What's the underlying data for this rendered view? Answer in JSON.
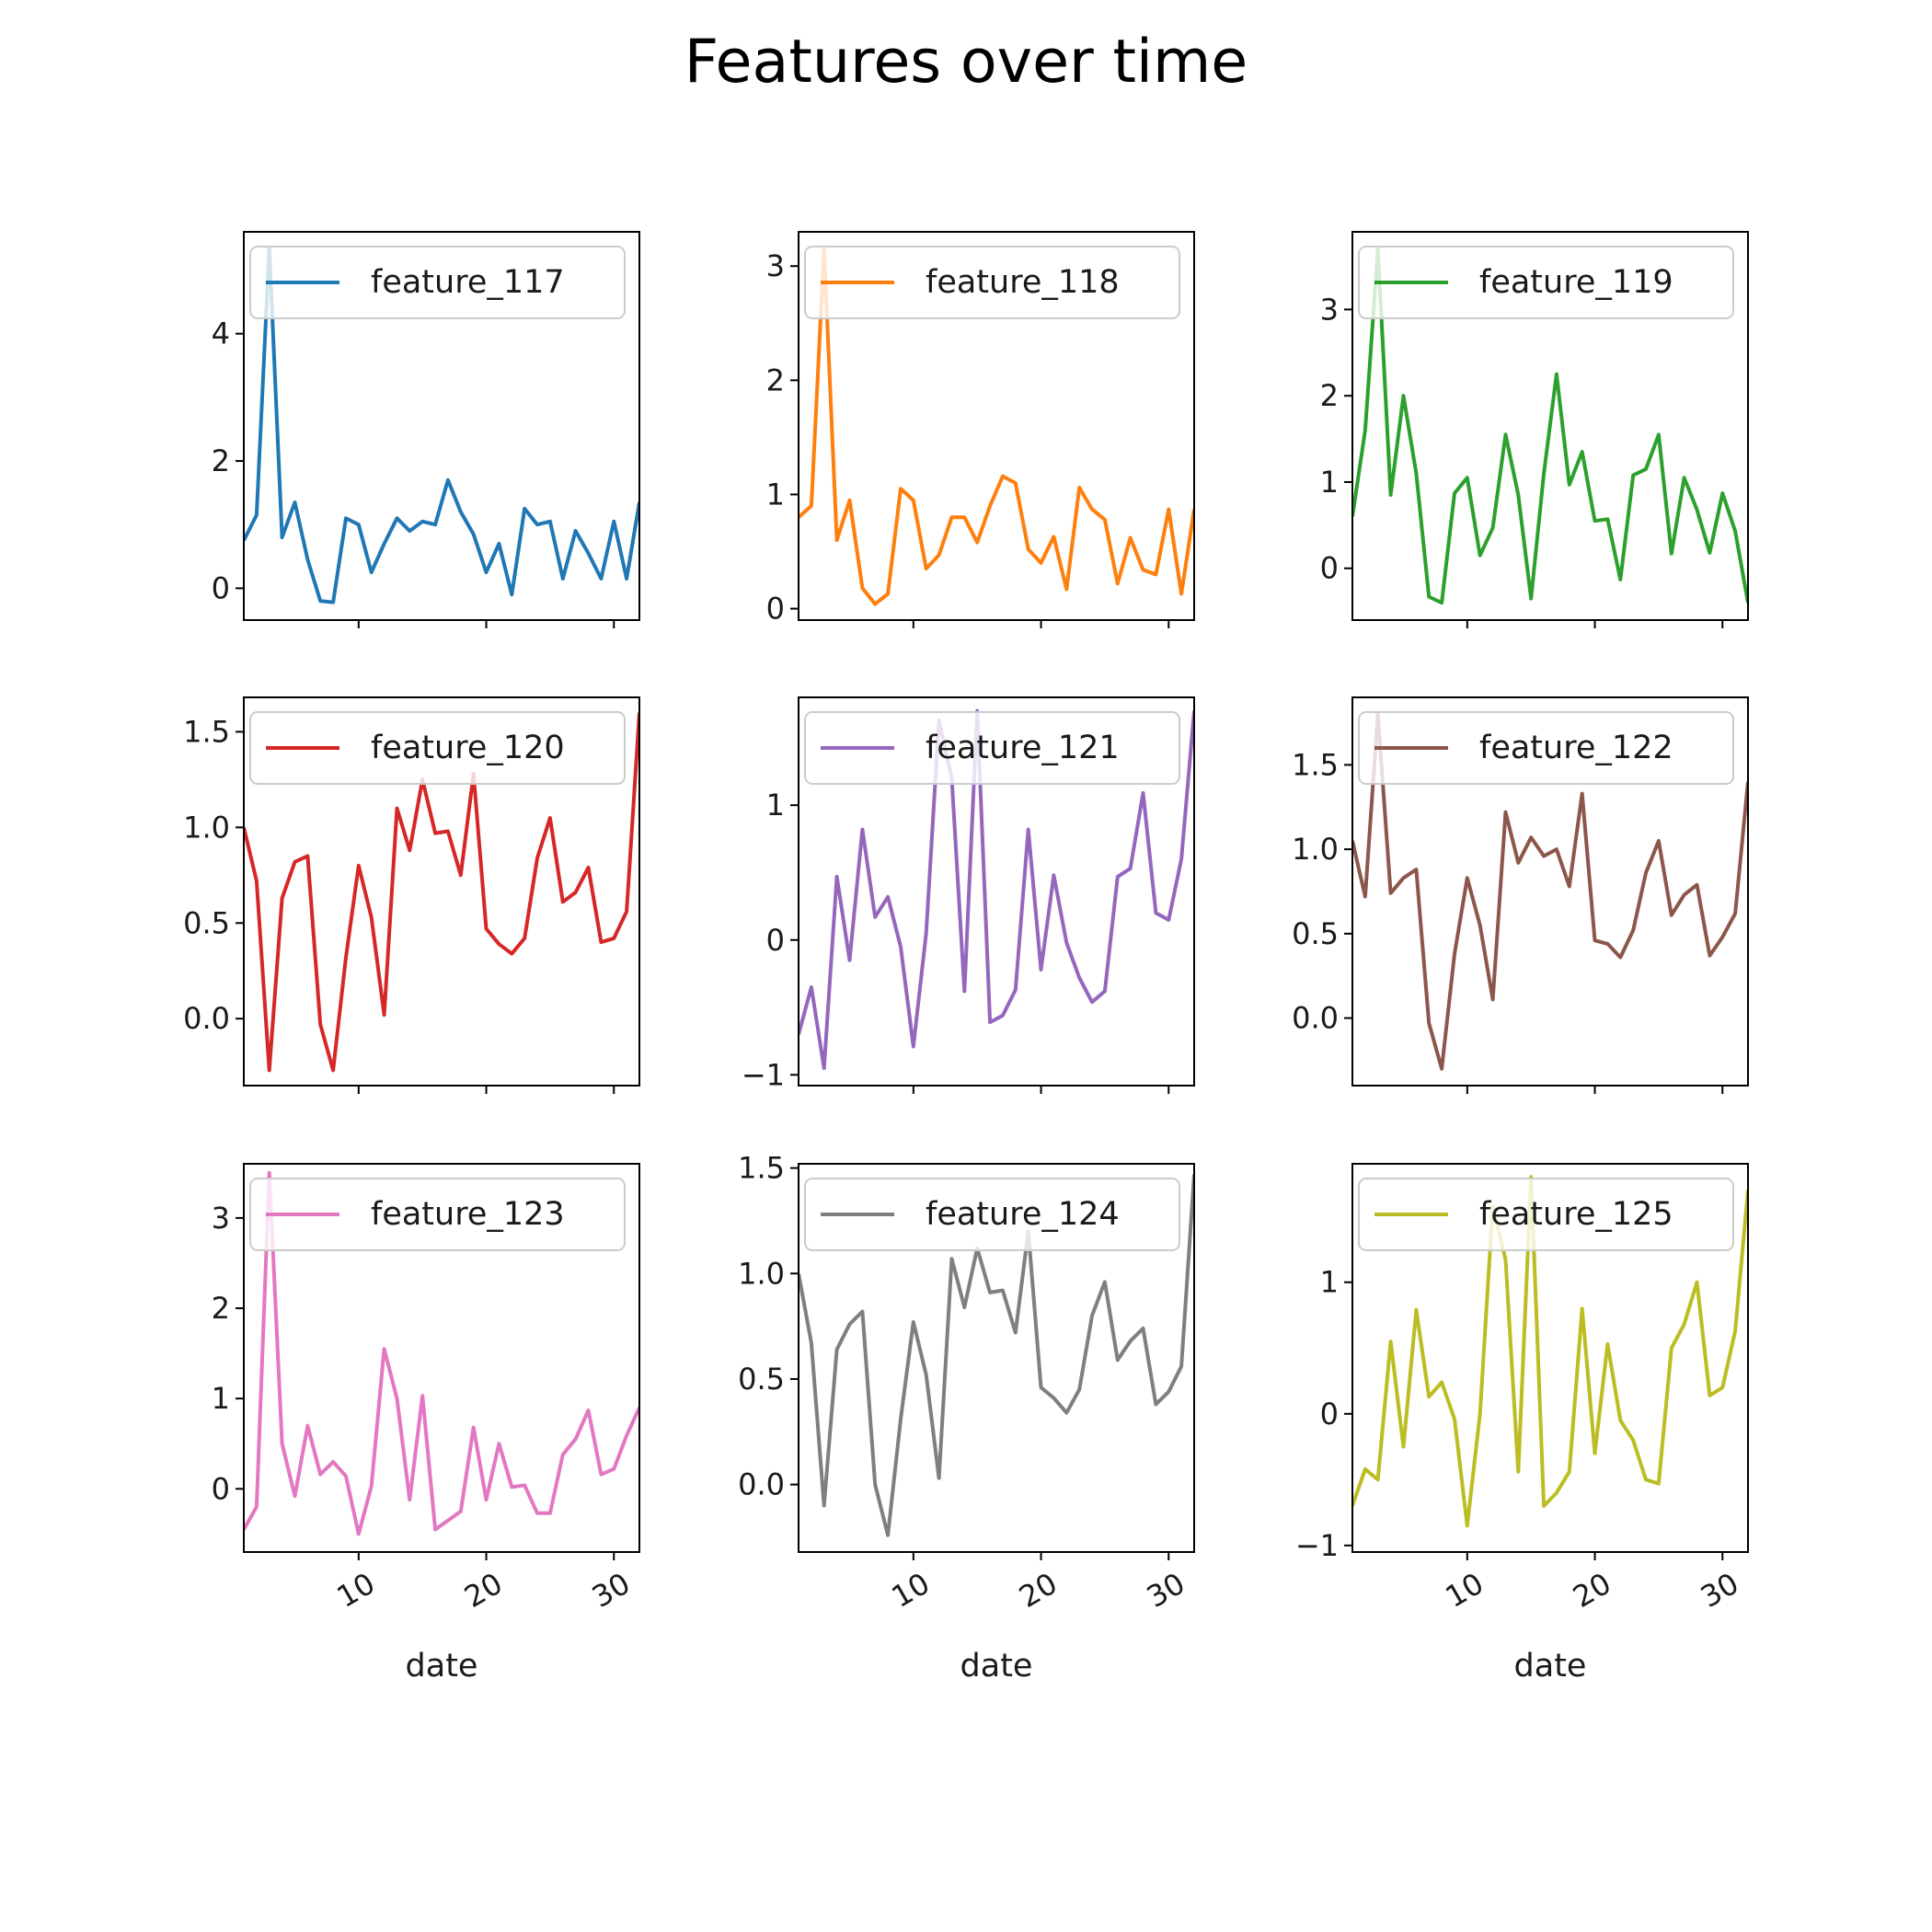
{
  "title": "Features over time",
  "chart_data": [
    {
      "type": "line",
      "series": [
        {
          "name": "feature_117",
          "color": "#1f77b4",
          "values": [
            0.75,
            1.15,
            5.35,
            0.8,
            1.35,
            0.45,
            -0.2,
            -0.22,
            1.1,
            1.0,
            0.25,
            0.7,
            1.1,
            0.9,
            1.05,
            1.0,
            1.7,
            1.2,
            0.85,
            0.25,
            0.7,
            -0.1,
            1.25,
            1.0,
            1.05,
            0.15,
            0.9,
            0.55,
            0.15,
            1.05,
            0.15,
            1.35
          ]
        }
      ],
      "xlabel": "date",
      "xticks": [
        10,
        20,
        30
      ],
      "xlim": [
        1,
        32
      ],
      "yticks": [
        "0",
        "2",
        "4"
      ],
      "ytick_values": [
        0,
        2,
        4
      ],
      "ylim": [
        -0.5,
        5.6
      ]
    },
    {
      "type": "line",
      "series": [
        {
          "name": "feature_118",
          "color": "#ff7f0e",
          "values": [
            0.8,
            0.9,
            3.15,
            0.6,
            0.95,
            0.18,
            0.04,
            0.13,
            1.05,
            0.95,
            0.35,
            0.47,
            0.8,
            0.8,
            0.58,
            0.9,
            1.16,
            1.1,
            0.52,
            0.4,
            0.63,
            0.17,
            1.06,
            0.87,
            0.78,
            0.22,
            0.62,
            0.34,
            0.3,
            0.87,
            0.13,
            0.87
          ]
        }
      ],
      "xlabel": "date",
      "xticks": [
        10,
        20,
        30
      ],
      "xlim": [
        1,
        32
      ],
      "yticks": [
        "0",
        "1",
        "2",
        "3"
      ],
      "ytick_values": [
        0,
        1,
        2,
        3
      ],
      "ylim": [
        -0.1,
        3.3
      ]
    },
    {
      "type": "line",
      "series": [
        {
          "name": "feature_119",
          "color": "#2ca02c",
          "values": [
            0.6,
            1.6,
            3.7,
            0.85,
            2.0,
            1.1,
            -0.33,
            -0.4,
            0.87,
            1.05,
            0.15,
            0.47,
            1.55,
            0.85,
            -0.35,
            1.1,
            2.25,
            0.97,
            1.35,
            0.55,
            0.57,
            -0.13,
            1.08,
            1.15,
            1.55,
            0.17,
            1.05,
            0.68,
            0.18,
            0.87,
            0.43,
            -0.4
          ]
        }
      ],
      "xlabel": "date",
      "xticks": [
        10,
        20,
        30
      ],
      "xlim": [
        1,
        32
      ],
      "yticks": [
        "0",
        "1",
        "2",
        "3"
      ],
      "ytick_values": [
        0,
        1,
        2,
        3
      ],
      "ylim": [
        -0.6,
        3.9
      ]
    },
    {
      "type": "line",
      "series": [
        {
          "name": "feature_120",
          "color": "#d62728",
          "values": [
            1.0,
            0.72,
            -0.27,
            0.63,
            0.82,
            0.85,
            -0.03,
            -0.27,
            0.32,
            0.8,
            0.53,
            0.02,
            1.1,
            0.88,
            1.25,
            0.97,
            0.98,
            0.75,
            1.28,
            0.47,
            0.39,
            0.34,
            0.42,
            0.84,
            1.05,
            0.61,
            0.66,
            0.79,
            0.4,
            0.42,
            0.56,
            1.6
          ]
        }
      ],
      "xlabel": "date",
      "xticks": [
        10,
        20,
        30
      ],
      "xlim": [
        1,
        32
      ],
      "yticks": [
        "0.0",
        "0.5",
        "1.0",
        "1.5"
      ],
      "ytick_values": [
        0,
        0.5,
        1,
        1.5
      ],
      "ylim": [
        -0.35,
        1.68
      ]
    },
    {
      "type": "line",
      "series": [
        {
          "name": "feature_121",
          "color": "#9467bd",
          "values": [
            -0.7,
            -0.35,
            -0.95,
            0.47,
            -0.15,
            0.82,
            0.17,
            0.32,
            -0.05,
            -0.79,
            0.05,
            1.63,
            1.2,
            -0.38,
            1.7,
            -0.61,
            -0.56,
            -0.37,
            0.82,
            -0.22,
            0.48,
            -0.02,
            -0.28,
            -0.46,
            -0.38,
            0.47,
            0.53,
            1.09,
            0.2,
            0.15,
            0.6,
            1.7
          ]
        }
      ],
      "xlabel": "date",
      "xticks": [
        10,
        20,
        30
      ],
      "xlim": [
        1,
        32
      ],
      "yticks": [
        "−1",
        "0",
        "1"
      ],
      "ytick_values": [
        -1,
        0,
        1
      ],
      "ylim": [
        -1.08,
        1.8
      ]
    },
    {
      "type": "line",
      "series": [
        {
          "name": "feature_122",
          "color": "#8c564b",
          "values": [
            1.05,
            0.72,
            1.8,
            0.74,
            0.83,
            0.88,
            -0.03,
            -0.3,
            0.38,
            0.83,
            0.55,
            0.11,
            1.22,
            0.92,
            1.07,
            0.96,
            1.0,
            0.78,
            1.33,
            0.46,
            0.44,
            0.36,
            0.52,
            0.86,
            1.05,
            0.61,
            0.73,
            0.79,
            0.37,
            0.48,
            0.62,
            1.4
          ]
        }
      ],
      "xlabel": "date",
      "xticks": [
        10,
        20,
        30
      ],
      "xlim": [
        1,
        32
      ],
      "yticks": [
        "0.0",
        "0.5",
        "1.0",
        "1.5"
      ],
      "ytick_values": [
        0,
        0.5,
        1,
        1.5
      ],
      "ylim": [
        -0.4,
        1.9
      ]
    },
    {
      "type": "line",
      "series": [
        {
          "name": "feature_123",
          "color": "#e377c2",
          "values": [
            -0.45,
            -0.2,
            3.5,
            0.5,
            -0.08,
            0.7,
            0.16,
            0.3,
            0.14,
            -0.5,
            0.03,
            1.55,
            1.0,
            -0.12,
            1.03,
            -0.45,
            -0.35,
            -0.25,
            0.68,
            -0.12,
            0.5,
            0.02,
            0.04,
            -0.27,
            -0.27,
            0.38,
            0.55,
            0.87,
            0.16,
            0.22,
            0.59,
            0.9
          ]
        }
      ],
      "xlabel": "date",
      "xticks": [
        10,
        20,
        30
      ],
      "xlim": [
        1,
        32
      ],
      "yticks": [
        "0",
        "1",
        "2",
        "3"
      ],
      "ytick_values": [
        0,
        1,
        2,
        3
      ],
      "ylim": [
        -0.7,
        3.6
      ]
    },
    {
      "type": "line",
      "series": [
        {
          "name": "feature_124",
          "color": "#7f7f7f",
          "values": [
            1.0,
            0.67,
            -0.1,
            0.64,
            0.76,
            0.82,
            0.0,
            -0.24,
            0.31,
            0.77,
            0.52,
            0.03,
            1.07,
            0.84,
            1.12,
            0.91,
            0.92,
            0.72,
            1.2,
            0.46,
            0.41,
            0.34,
            0.45,
            0.8,
            0.96,
            0.59,
            0.68,
            0.74,
            0.38,
            0.44,
            0.56,
            1.47
          ]
        }
      ],
      "xlabel": "date",
      "xticks": [
        10,
        20,
        30
      ],
      "xlim": [
        1,
        32
      ],
      "yticks": [
        "0.0",
        "0.5",
        "1.0",
        "1.5"
      ],
      "ytick_values": [
        0,
        0.5,
        1,
        1.5
      ],
      "ylim": [
        -0.32,
        1.52
      ]
    },
    {
      "type": "line",
      "series": [
        {
          "name": "feature_125",
          "color": "#bcbd22",
          "values": [
            -0.7,
            -0.42,
            -0.5,
            0.55,
            -0.25,
            0.79,
            0.13,
            0.24,
            -0.04,
            -0.85,
            0.0,
            1.58,
            1.17,
            -0.44,
            1.8,
            -0.7,
            -0.6,
            -0.44,
            0.8,
            -0.3,
            0.53,
            -0.05,
            -0.2,
            -0.5,
            -0.53,
            0.5,
            0.68,
            1.0,
            0.14,
            0.2,
            0.63,
            1.7
          ]
        }
      ],
      "xlabel": "date",
      "xticks": [
        10,
        20,
        30
      ],
      "xlim": [
        1,
        32
      ],
      "yticks": [
        "−1",
        "0",
        "1"
      ],
      "ytick_values": [
        -1,
        0,
        1
      ],
      "ylim": [
        -1.05,
        1.9
      ]
    }
  ]
}
